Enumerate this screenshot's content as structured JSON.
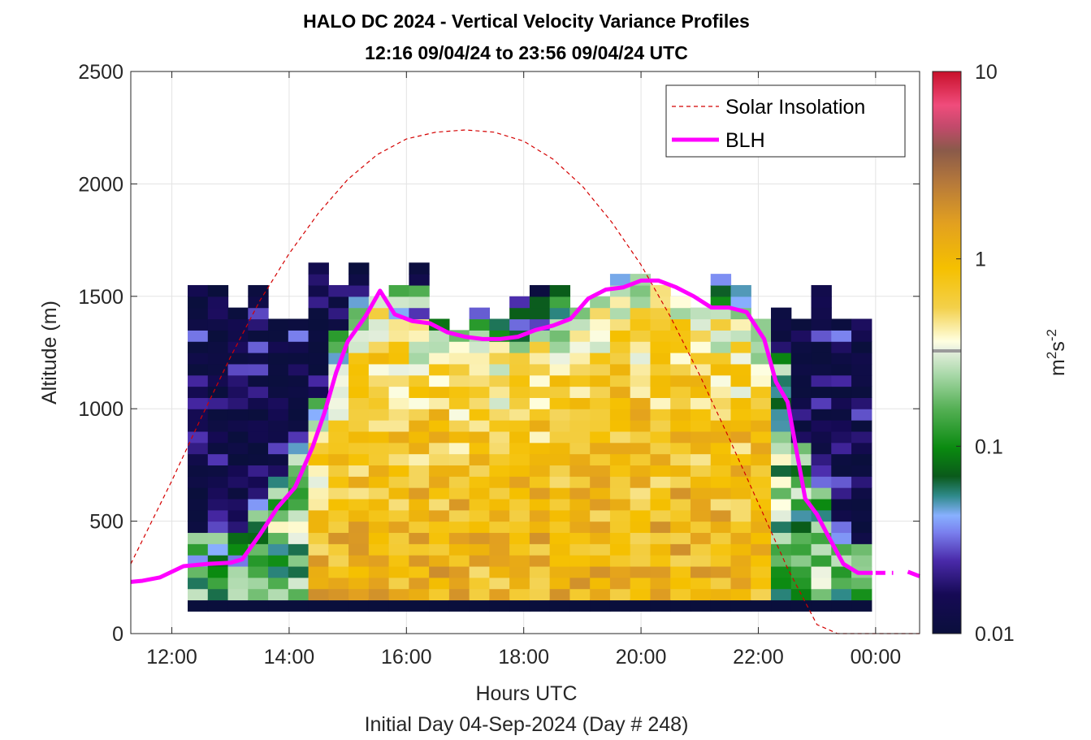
{
  "chart_data": {
    "type": "heatmap",
    "title": "HALO DC 2024 - Vertical Velocity Variance Profiles",
    "subtitle": "12:16 09/04/24 to 23:56 09/04/24  UTC",
    "xlabel": "Hours UTC",
    "xlabel2": "Initial Day 04-Sep-2024 (Day # 248)",
    "ylabel": "Altitude (m)",
    "xlim": [
      11.3,
      24.75
    ],
    "ylim": [
      0,
      2500
    ],
    "x_ticks": [
      12,
      14,
      16,
      18,
      20,
      22,
      24
    ],
    "x_tick_labels": [
      "12:00",
      "14:00",
      "16:00",
      "18:00",
      "20:00",
      "22:00",
      "00:00"
    ],
    "y_ticks": [
      0,
      500,
      1000,
      1500,
      2000,
      2500
    ],
    "y_tick_labels": [
      "0",
      "500",
      "1000",
      "1500",
      "2000",
      "2500"
    ],
    "grid": true,
    "legend_location": "top-right",
    "colorbar": {
      "scale": "log",
      "range": [
        0.01,
        10
      ],
      "ticks": [
        0.01,
        0.1,
        1,
        10
      ],
      "tick_labels": [
        "0.01",
        "0.1",
        "1",
        "10"
      ],
      "label_base": "m",
      "label_sup1": "2",
      "label_mid": "s",
      "label_sup2": "-2"
    },
    "time_range_hours": [
      12.27,
      23.93
    ],
    "altitude_range_m": [
      100,
      1650
    ],
    "series": [
      {
        "name": "Solar Insolation",
        "style": "dashed",
        "color": "#d40000",
        "x": [
          11.3,
          12.0,
          12.5,
          13.0,
          13.5,
          14.0,
          14.5,
          15.0,
          15.5,
          16.0,
          16.5,
          17.0,
          17.5,
          18.0,
          18.5,
          19.0,
          19.5,
          20.0,
          20.5,
          21.0,
          21.5,
          22.0,
          22.5,
          23.0,
          23.35,
          23.4,
          24.75
        ],
        "y": [
          310,
          680,
          960,
          1230,
          1480,
          1690,
          1870,
          2020,
          2130,
          2200,
          2230,
          2240,
          2230,
          2190,
          2110,
          1990,
          1830,
          1640,
          1410,
          1150,
          870,
          580,
          290,
          40,
          0,
          0,
          0
        ]
      },
      {
        "name": "BLH",
        "style": "solid",
        "color": "#ff00ff",
        "x": [
          11.3,
          11.5,
          11.8,
          12.2,
          12.6,
          13.0,
          13.2,
          13.5,
          13.8,
          14.1,
          14.4,
          14.6,
          14.8,
          15.0,
          15.3,
          15.55,
          15.8,
          16.1,
          16.4,
          16.7,
          17.0,
          17.3,
          17.6,
          17.9,
          18.2,
          18.5,
          18.8,
          19.1,
          19.4,
          19.7,
          20.0,
          20.3,
          20.6,
          20.9,
          21.2,
          21.5,
          21.8,
          22.1,
          22.3,
          22.5,
          22.8,
          23.0,
          23.2,
          23.45,
          23.7,
          23.95
        ],
        "y": [
          230,
          235,
          250,
          300,
          310,
          315,
          330,
          440,
          560,
          650,
          830,
          980,
          1160,
          1300,
          1410,
          1525,
          1420,
          1390,
          1380,
          1340,
          1320,
          1310,
          1310,
          1320,
          1350,
          1370,
          1400,
          1490,
          1530,
          1540,
          1570,
          1570,
          1540,
          1500,
          1450,
          1450,
          1430,
          1310,
          1120,
          1030,
          600,
          530,
          430,
          310,
          270,
          270
        ]
      }
    ],
    "blh_tail": {
      "x": [
        24.0,
        24.3
      ],
      "y": [
        270,
        270
      ]
    },
    "blh_stub": {
      "x": [
        24.55,
        24.75
      ],
      "y": [
        275,
        255
      ]
    }
  }
}
